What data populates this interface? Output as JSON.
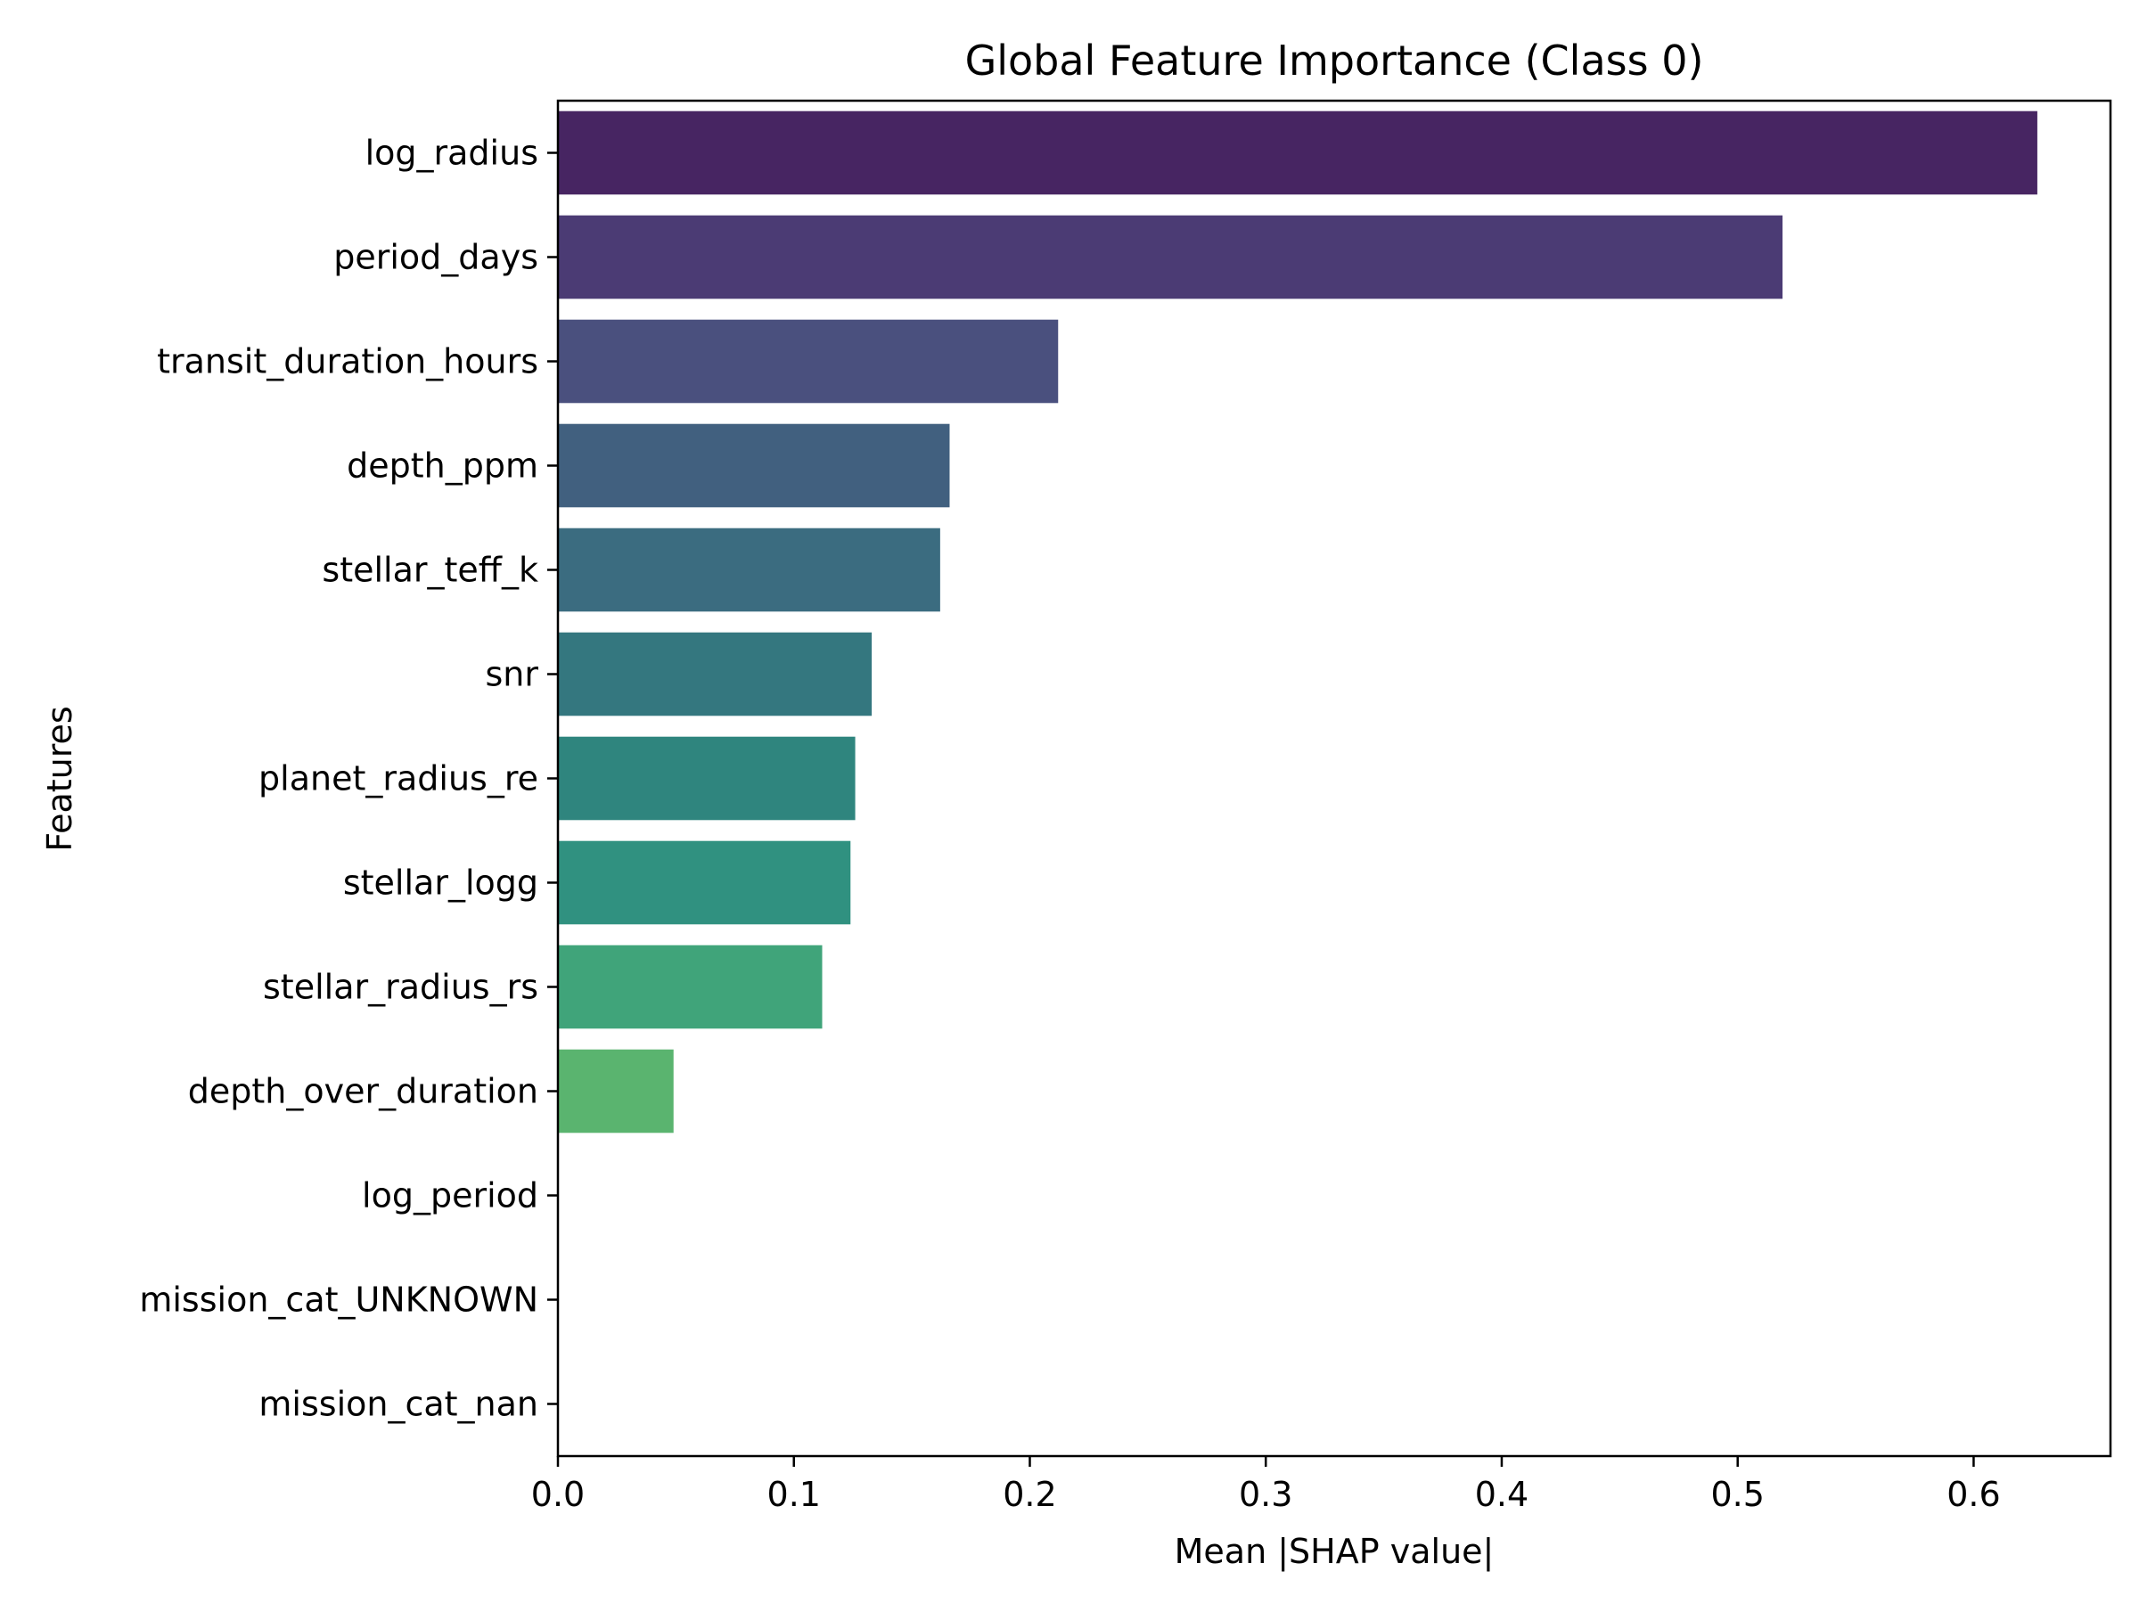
{
  "chart_data": {
    "type": "bar",
    "orientation": "horizontal",
    "title": "Global Feature Importance (Class 0)",
    "xlabel": "Mean |SHAP value|",
    "ylabel": "Features",
    "xlim": [
      0,
      0.658
    ],
    "xticks": [
      0.0,
      0.1,
      0.2,
      0.3,
      0.4,
      0.5,
      0.6
    ],
    "xtick_labels": [
      "0.0",
      "0.1",
      "0.2",
      "0.3",
      "0.4",
      "0.5",
      "0.6"
    ],
    "grid": false,
    "legend": "none",
    "categories": [
      "log_radius",
      "period_days",
      "transit_duration_hours",
      "depth_ppm",
      "stellar_teff_k",
      "snr",
      "planet_radius_re",
      "stellar_logg",
      "stellar_radius_rs",
      "depth_over_duration",
      "log_period",
      "mission_cat_UNKNOWN",
      "mission_cat_nan"
    ],
    "values": [
      0.627,
      0.519,
      0.212,
      0.166,
      0.162,
      0.133,
      0.126,
      0.124,
      0.112,
      0.049,
      0.0,
      0.0,
      0.0
    ],
    "colors": [
      "#472562",
      "#4b3b74",
      "#4a507e",
      "#41607f",
      "#3b6c80",
      "#34777f",
      "#2f857e",
      "#309180",
      "#40a47a",
      "#5ab46f",
      "#7cc35f",
      "#a6ce4f",
      "#d2d844"
    ],
    "axis_color": "#000000"
  }
}
